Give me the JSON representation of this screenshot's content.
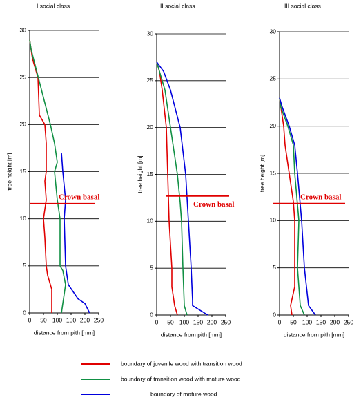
{
  "chart_data": [
    {
      "type": "line",
      "title": "I social class",
      "xlabel": "distance from pith [mm]",
      "ylabel": "tree height [m]",
      "xlim": [
        0,
        250
      ],
      "xticks": [
        0,
        50,
        100,
        150,
        200,
        250
      ],
      "ylim": [
        0,
        30
      ],
      "yticks": [
        0,
        5,
        10,
        15,
        20,
        25,
        30
      ],
      "grid": true,
      "annotation": {
        "text": "Crown basal",
        "y": 11.6,
        "color": "#e00000"
      },
      "series": [
        {
          "color": "#e00000",
          "x": [
            80,
            80,
            65,
            60,
            55,
            50,
            60,
            55,
            60,
            60,
            55,
            35,
            30,
            10,
            0
          ],
          "y": [
            0,
            2.5,
            4,
            5,
            8,
            10,
            12,
            14,
            15,
            18,
            20,
            21,
            25,
            27,
            29
          ]
        },
        {
          "color": "#119044",
          "x": [
            115,
            120,
            130,
            120,
            110,
            110,
            100,
            90,
            100,
            90,
            75,
            40,
            5,
            0
          ],
          "y": [
            0,
            1,
            3,
            4.5,
            5,
            10,
            12,
            15,
            16,
            18,
            20,
            24,
            28,
            29
          ]
        },
        {
          "color": "#0000dd",
          "x": [
            217,
            200,
            175,
            140,
            130,
            125,
            130,
            120,
            115
          ],
          "y": [
            0,
            1,
            1.5,
            3,
            5,
            10,
            12,
            15,
            17
          ]
        }
      ]
    },
    {
      "type": "line",
      "title": "II social class",
      "xlabel": "distance from pith [mm]",
      "ylabel": "tree height [m]",
      "xlim": [
        0,
        250
      ],
      "xticks": [
        0,
        50,
        100,
        150,
        200,
        250
      ],
      "ylim": [
        0,
        30
      ],
      "yticks": [
        0,
        5,
        10,
        15,
        20,
        25,
        30
      ],
      "grid": true,
      "annotation": {
        "text": "Crown basal",
        "y": 12.7,
        "color": "#e00000"
      },
      "series": [
        {
          "color": "#e00000",
          "x": [
            75,
            65,
            55,
            55,
            45,
            40,
            35,
            20,
            10,
            0
          ],
          "y": [
            0,
            1,
            3,
            5,
            10,
            15,
            20,
            24,
            26,
            27
          ]
        },
        {
          "color": "#119044",
          "x": [
            110,
            100,
            95,
            90,
            85,
            75,
            50,
            30,
            0
          ],
          "y": [
            0,
            1,
            5,
            10,
            12,
            15,
            20,
            24,
            27
          ]
        },
        {
          "color": "#0000dd",
          "x": [
            185,
            130,
            130,
            125,
            115,
            105,
            85,
            50,
            25,
            0
          ],
          "y": [
            0,
            1,
            1.5,
            5,
            10,
            15,
            20,
            24,
            26,
            27
          ]
        }
      ]
    },
    {
      "type": "line",
      "title": "III social class",
      "xlabel": "distance from pith [mm]",
      "ylabel": "tree height [m]",
      "xlim": [
        0,
        250
      ],
      "xticks": [
        0,
        50,
        100,
        150,
        200,
        250
      ],
      "ylim": [
        0,
        30
      ],
      "yticks": [
        0,
        5,
        10,
        15,
        20,
        25,
        30
      ],
      "grid": true,
      "annotation": {
        "text": "Crown basal",
        "y": 11.8,
        "color": "#e00000"
      },
      "series": [
        {
          "color": "#e00000",
          "x": [
            45,
            40,
            55,
            55,
            55,
            50,
            35,
            20,
            15,
            5,
            0
          ],
          "y": [
            0,
            1,
            3,
            5,
            10,
            12,
            15,
            18,
            20,
            22,
            23
          ]
        },
        {
          "color": "#119044",
          "x": [
            90,
            75,
            65,
            70,
            55,
            50,
            30,
            5,
            0
          ],
          "y": [
            0,
            1,
            5,
            10,
            15,
            18,
            20,
            22,
            23
          ]
        },
        {
          "color": "#0000dd",
          "x": [
            130,
            105,
            90,
            80,
            65,
            55,
            35,
            10,
            0
          ],
          "y": [
            0,
            1,
            5,
            10,
            15,
            18,
            20,
            22,
            23
          ]
        }
      ]
    }
  ],
  "legend": [
    {
      "name": "boundary of juvenile wood with transition wood",
      "color": "#e00000"
    },
    {
      "name": "boundary of transition wood with mature wood",
      "color": "#119044"
    },
    {
      "name": "boundary of mature wood",
      "color": "#0000dd"
    }
  ]
}
